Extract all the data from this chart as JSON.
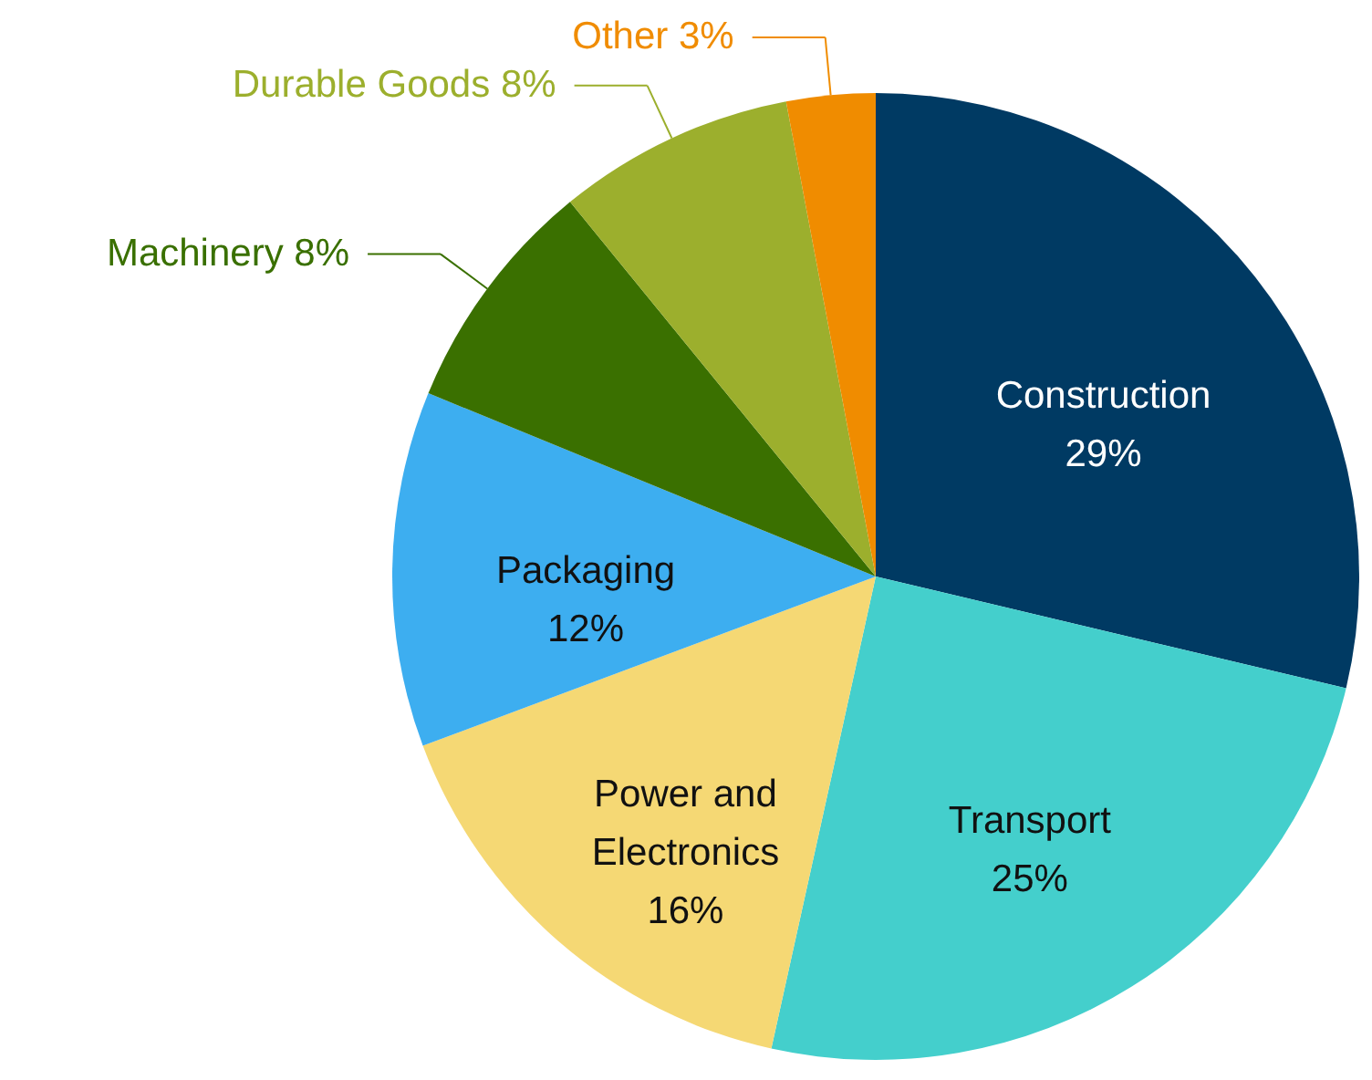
{
  "chart_data": {
    "type": "pie",
    "categories": [
      "Construction",
      "Transport",
      "Power and Electronics",
      "Packaging",
      "Machinery",
      "Durable Goods",
      "Other"
    ],
    "values": [
      29,
      25,
      16,
      12,
      8,
      8,
      3
    ],
    "colors": [
      "#003a63",
      "#44cfcc",
      "#f5d874",
      "#3daef0",
      "#3a7000",
      "#9caf2d",
      "#f08c00"
    ],
    "value_labels": [
      "29%",
      "25%",
      "16%",
      "12%",
      "8%",
      "8%",
      "3%"
    ]
  }
}
